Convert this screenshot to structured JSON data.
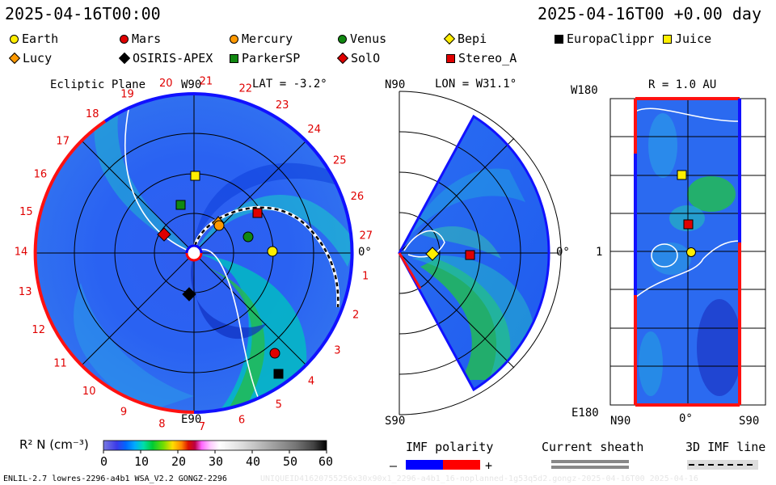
{
  "header": {
    "datetime": "2025-04-16T00:00",
    "datetime_offset": "2025-04-16T00 +0.00 day"
  },
  "legend": [
    {
      "name": "Earth",
      "color": "#ffee00",
      "shape": "circle"
    },
    {
      "name": "Mars",
      "color": "#e00000",
      "shape": "circle"
    },
    {
      "name": "Mercury",
      "color": "#ff9900",
      "shape": "circle"
    },
    {
      "name": "Venus",
      "color": "#118811",
      "shape": "circle"
    },
    {
      "name": "Bepi",
      "color": "#ffee00",
      "shape": "diamond"
    },
    {
      "name": "EuropaClippr",
      "color": "#000000",
      "shape": "square"
    },
    {
      "name": "Juice",
      "color": "#ffee00",
      "shape": "square"
    },
    {
      "name": "Lucy",
      "color": "#ff9900",
      "shape": "diamond"
    },
    {
      "name": "OSIRIS-APEX",
      "color": "#000000",
      "shape": "diamond"
    },
    {
      "name": "ParkerSP",
      "color": "#118811",
      "shape": "square"
    },
    {
      "name": "SolO",
      "color": "#e00000",
      "shape": "diamond"
    },
    {
      "name": "Stereo_A",
      "color": "#e00000",
      "shape": "square"
    }
  ],
  "ecliptic": {
    "title": "Ecliptic Plane",
    "lat_label": "LAT = -3.2°",
    "top_label": "W90",
    "bottom_label": "E90",
    "right_label": "0°",
    "sector_numbers": [
      "27",
      "1",
      "2",
      "3",
      "4",
      "5",
      "6",
      "7",
      "8",
      "9",
      "10",
      "11",
      "12",
      "13",
      "14",
      "15",
      "16",
      "17",
      "18",
      "19",
      "20",
      "21",
      "22",
      "23",
      "24",
      "25",
      "26"
    ]
  },
  "meridional": {
    "lon_label": "LON = W31.1°",
    "top_label": "N90",
    "bottom_label": "S90",
    "right_label": "0°"
  },
  "radial": {
    "r_label": "R = 1.0 AU",
    "top_label": "W180",
    "bottom_label": "E180",
    "mid_label": "1",
    "x_labels": [
      "N90",
      "0°",
      "S90"
    ]
  },
  "colorbar": {
    "label": "R² N (cm⁻³)",
    "ticks": [
      "0",
      "10",
      "20",
      "30",
      "40",
      "50",
      "60"
    ],
    "stops": [
      "#7a7ae0",
      "#3a3ae8",
      "#0066ff",
      "#00aaff",
      "#00ddaa",
      "#00cc33",
      "#77dd00",
      "#ffdd00",
      "#ff8800",
      "#dd1100",
      "#bb0044",
      "#ff66ff",
      "#ffccff",
      "#ffffff",
      "#dddddd",
      "#aaaaaa",
      "#777777",
      "#444444",
      "#000000"
    ]
  },
  "imf": {
    "title": "IMF polarity",
    "minus": "–",
    "plus": "+",
    "neg_color": "#0000ff",
    "pos_color": "#ff0000"
  },
  "sheath": {
    "title": "Current sheath"
  },
  "imfline": {
    "title": "3D IMF line"
  },
  "footer": {
    "model": "ENLIL-2.7 lowres-2296-a4b1 WSA_V2.2 GONGZ-2296",
    "watermark": "UNIQUEID41620755256x30x90x1_2296-a4b1_16-noplanned-1g53q5d2.gongz-2025-04-16T00  2025-04-16"
  }
}
